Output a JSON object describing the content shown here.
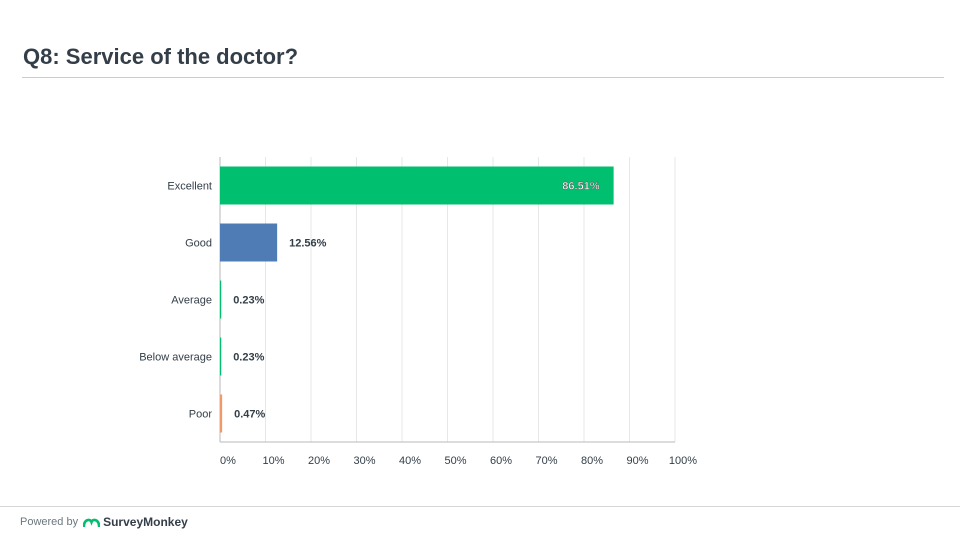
{
  "page": {
    "title": "Q8:  Service of the doctor?",
    "footer": {
      "powered_by": "Powered by",
      "brand": "SurveyMonkey"
    }
  },
  "colors": {
    "bar_excellent": "#00bf6f",
    "bar_good": "#507cb6",
    "bar_poor": "#f09a6b",
    "grid": "#e6e7e8",
    "axis": "#b8babc",
    "text": "#333e48",
    "brand_green": "#00bf6f"
  },
  "icons": {
    "logo": "surveymonkey-logo-icon"
  },
  "chart_data": {
    "type": "bar",
    "orientation": "horizontal",
    "categories": [
      "Excellent",
      "Good",
      "Average",
      "Below average",
      "Poor"
    ],
    "values": [
      86.51,
      12.56,
      0.23,
      0.23,
      0.47
    ],
    "labels": [
      "86.51%",
      "12.56%",
      "0.23%",
      "0.23%",
      "0.47%"
    ],
    "bar_colors": [
      "#00bf6f",
      "#507cb6",
      "#00bf6f",
      "#00bf6f",
      "#f09a6b"
    ],
    "xlim": [
      0,
      100
    ],
    "ticks": [
      0,
      10,
      20,
      30,
      40,
      50,
      60,
      70,
      80,
      90,
      100
    ],
    "tick_labels": [
      "0%",
      "10%",
      "20%",
      "30%",
      "40%",
      "50%",
      "60%",
      "70%",
      "80%",
      "90%",
      "100%"
    ],
    "grid": true,
    "legend": "none",
    "xlabel": "",
    "ylabel": ""
  }
}
